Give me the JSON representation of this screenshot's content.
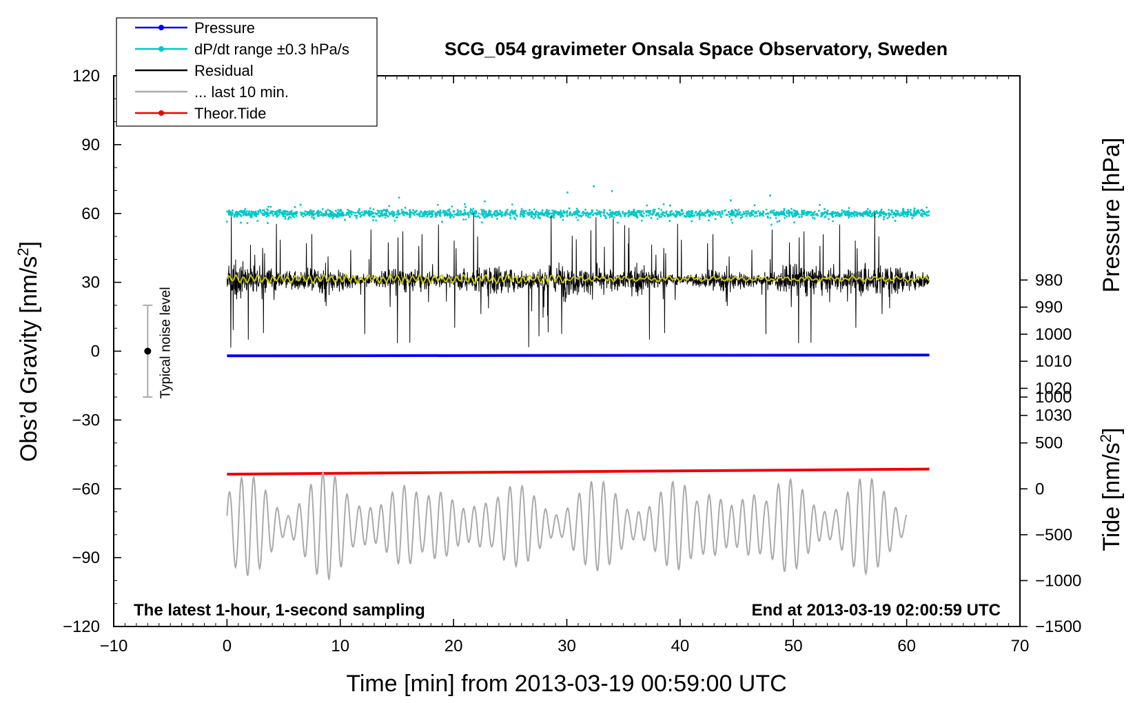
{
  "chart_data": {
    "type": "line",
    "title": "SCG_054 gravimeter Onsala Space Observatory, Sweden",
    "xlabel": "Time [min] from 2013-03-19 00:59:00 UTC",
    "ylabel_left": "Obs’d Gravity [nm/s²]",
    "ylabel_right_top": "Pressure [hPa]",
    "ylabel_right_bottom": "Tide [nm/s²]",
    "xlim": [
      -10,
      70
    ],
    "ylim_left": [
      -120,
      120
    ],
    "x_ticks": [
      "−10",
      "0",
      "10",
      "20",
      "30",
      "40",
      "50",
      "60",
      "70"
    ],
    "x_tick_values": [
      -10,
      0,
      10,
      20,
      30,
      40,
      50,
      60,
      70
    ],
    "y_left_ticks": [
      "120",
      "90",
      "60",
      "30",
      "0",
      "−30",
      "−60",
      "−90",
      "−120"
    ],
    "y_left_tick_values": [
      120,
      90,
      60,
      30,
      0,
      -30,
      -60,
      -90,
      -120
    ],
    "pressure_ticks": [
      "1030",
      "1020",
      "1010",
      "1000",
      "990",
      "980"
    ],
    "pressure_tick_values": [
      1030,
      1020,
      1010,
      1000,
      990,
      980
    ],
    "tide_ticks": [
      "1000",
      "500",
      "0",
      "−500",
      "−1000",
      "−1500"
    ],
    "tide_tick_values": [
      1000,
      500,
      0,
      -500,
      -1000,
      -1500
    ],
    "legend": {
      "placement": "top-left",
      "entries": [
        {
          "label": "Pressure",
          "color": "#0000ee",
          "marker": true
        },
        {
          "label": "dP/dt range ±0.3 hPa/s",
          "color": "#00c8c8",
          "marker": true
        },
        {
          "label": "Residual",
          "color": "#000000",
          "marker": false
        },
        {
          "label": "... last 10 min.",
          "color": "#aaaaaa",
          "marker": false
        },
        {
          "label": "Theor.Tide",
          "color": "#ee0000",
          "marker": true
        }
      ]
    },
    "series": [
      {
        "name": "Pressure",
        "axis": "pressure_hPa",
        "color": "#0000ee",
        "x_range": [
          0,
          62
        ],
        "y_start": 1008.0,
        "y_end": 1007.7
      },
      {
        "name": "dP/dt range ±0.3 hPa/s",
        "axis": "left",
        "color": "#00c8c8",
        "x_range": [
          0,
          62
        ],
        "center": 60,
        "spread": 8
      },
      {
        "name": "Residual",
        "axis": "left",
        "color": "#000000",
        "x_range": [
          0,
          62
        ],
        "center": 31,
        "amplitude": 30
      },
      {
        "name": "Residual smoothed",
        "axis": "left",
        "color": "#c8c800",
        "x_range": [
          0,
          62
        ],
        "center": 31.5
      },
      {
        "name": "... last 10 min.",
        "axis": "left",
        "color": "#aaaaaa",
        "x_range": [
          0,
          60
        ],
        "center": -76,
        "amplitude": 22
      },
      {
        "name": "Theor.Tide",
        "axis": "tide_nm_s2",
        "color": "#ee0000",
        "x_range": [
          0,
          62
        ],
        "y_start": 160,
        "y_end": 215
      }
    ],
    "noise_bar": {
      "label": "Typical noise level",
      "x": -7,
      "center": 0,
      "low": -20,
      "high": 20
    },
    "annotations": {
      "bottom_left": "The latest 1-hour, 1-second sampling",
      "bottom_right": "End at 2013-03-19 02:00:59 UTC"
    },
    "colors": {
      "pressure": "#0000ee",
      "dpdt": "#00c8c8",
      "residual": "#000000",
      "smoothed": "#c8c800",
      "last10": "#aaaaaa",
      "tide": "#ee0000"
    }
  }
}
